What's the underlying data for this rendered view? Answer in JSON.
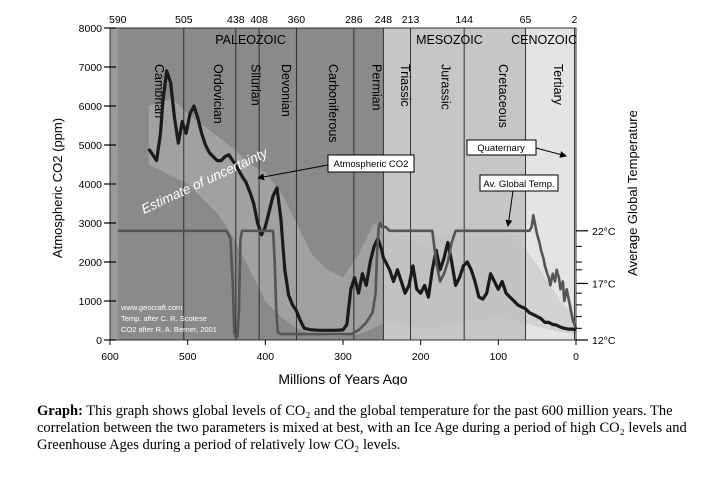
{
  "chart_data": {
    "type": "line",
    "title": "",
    "xlabel": "Millions of Years Ago",
    "ylabel": "Atmospheric CO2 (ppm)",
    "y2label": "Average Global Temperature",
    "xlim": [
      600,
      0
    ],
    "ylim": [
      0,
      8000
    ],
    "x_ticks": [
      "600",
      "500",
      "400",
      "300",
      "200",
      "100",
      "0"
    ],
    "x_tick_values": [
      600,
      500,
      400,
      300,
      200,
      100,
      0
    ],
    "y_ticks": [
      "0",
      "1000",
      "2000",
      "3000",
      "4000",
      "5000",
      "6000",
      "7000",
      "8000"
    ],
    "y_tick_values": [
      0,
      1000,
      2000,
      3000,
      4000,
      5000,
      6000,
      7000,
      8000
    ],
    "temp_ticks": [
      {
        "label": "22°C",
        "y": 2800
      },
      {
        "label": "17°C",
        "y": 1450
      },
      {
        "label": "12°C",
        "y": 0
      }
    ],
    "top_ticks": [
      "590",
      "505",
      "438",
      "408",
      "360",
      "286",
      "248",
      "213",
      "144",
      "65",
      "2"
    ],
    "top_tick_values": [
      590,
      505,
      438,
      408,
      360,
      286,
      248,
      213,
      144,
      65,
      2
    ],
    "eras": [
      {
        "label": "PALEOZOIC",
        "start": 590,
        "end": 248,
        "color": "#8a8a8a"
      },
      {
        "label": "MESOZOIC",
        "start": 248,
        "end": 65,
        "color": "#c6c6c6"
      },
      {
        "label": "CENOZOIC",
        "start": 65,
        "end": 0,
        "color": "#e4e4e4"
      }
    ],
    "periods": [
      {
        "label": "Cambrian",
        "start": 590,
        "end": 505
      },
      {
        "label": "Ordovician",
        "start": 505,
        "end": 438
      },
      {
        "label": "Silurian",
        "start": 438,
        "end": 408
      },
      {
        "label": "Devonian",
        "start": 408,
        "end": 360
      },
      {
        "label": "Carboniferous",
        "start": 360,
        "end": 286
      },
      {
        "label": "Permian",
        "start": 286,
        "end": 248
      },
      {
        "label": "Triassic",
        "start": 248,
        "end": 213
      },
      {
        "label": "Jurassic",
        "start": 213,
        "end": 144
      },
      {
        "label": "Cretaceous",
        "start": 144,
        "end": 65
      },
      {
        "label": "Tertiary",
        "start": 65,
        "end": 2
      }
    ],
    "series": [
      {
        "name": "Atmospheric CO2",
        "color": "#1a1a1a",
        "x": [
          550,
          540,
          535,
          532,
          527,
          522,
          517,
          512,
          507,
          502,
          497,
          492,
          487,
          482,
          477,
          472,
          467,
          462,
          457,
          452,
          447,
          442,
          437,
          430,
          425,
          420,
          415,
          410,
          405,
          400,
          395,
          390,
          385,
          380,
          375,
          370,
          365,
          360,
          355,
          350,
          340,
          330,
          320,
          310,
          300,
          295,
          290,
          285,
          280,
          275,
          270,
          265,
          260,
          255,
          250,
          248,
          245,
          240,
          235,
          230,
          225,
          220,
          215,
          210,
          205,
          200,
          195,
          190,
          185,
          180,
          175,
          170,
          165,
          160,
          155,
          150,
          145,
          140,
          135,
          130,
          125,
          120,
          115,
          110,
          105,
          100,
          95,
          90,
          85,
          80,
          75,
          70,
          65,
          60,
          55,
          50,
          45,
          40,
          35,
          30,
          25,
          20,
          15,
          10,
          5,
          0
        ],
        "y": [
          4900,
          4600,
          5300,
          6100,
          6900,
          6600,
          5700,
          5050,
          5600,
          5300,
          5800,
          6000,
          5700,
          5300,
          5000,
          4800,
          4700,
          4600,
          4600,
          4700,
          4750,
          4600,
          4450,
          4200,
          4050,
          3800,
          3500,
          3000,
          2700,
          2900,
          3300,
          3700,
          3900,
          3100,
          1800,
          1150,
          900,
          750,
          500,
          300,
          260,
          250,
          250,
          250,
          260,
          400,
          1300,
          1600,
          1200,
          1700,
          1400,
          2000,
          2400,
          2600,
          2300,
          2100,
          2000,
          1800,
          1500,
          1800,
          1500,
          1200,
          1400,
          1900,
          1300,
          1200,
          1400,
          1100,
          1800,
          2300,
          1800,
          2100,
          2500,
          2000,
          1400,
          1600,
          1900,
          2000,
          1800,
          1500,
          1100,
          1050,
          1200,
          1700,
          1500,
          1300,
          1500,
          1200,
          1100,
          1000,
          900,
          850,
          800,
          700,
          650,
          600,
          550,
          450,
          450,
          400,
          380,
          330,
          300,
          280,
          280,
          270
        ]
      },
      {
        "name": "Av. Global Temp.",
        "color": "#555555",
        "x": [
          590,
          560,
          530,
          500,
          470,
          450,
          445,
          442,
          440,
          438,
          436,
          434,
          432,
          430,
          420,
          410,
          400,
          395,
          390,
          388,
          386,
          384,
          380,
          375,
          370,
          365,
          360,
          355,
          350,
          340,
          330,
          320,
          310,
          300,
          290,
          280,
          270,
          262,
          258,
          256,
          254,
          252,
          250,
          245,
          240,
          220,
          200,
          190,
          185,
          180,
          175,
          170,
          165,
          160,
          155,
          150,
          145,
          140,
          130,
          120,
          110,
          100,
          90,
          85,
          80,
          75,
          70,
          65,
          60,
          57,
          55,
          52,
          50,
          47,
          45,
          42,
          40,
          37,
          35,
          33,
          30,
          27,
          25,
          22,
          20,
          17,
          15,
          12,
          10,
          8,
          6,
          4,
          2,
          0
        ],
        "y": [
          2800,
          2800,
          2800,
          2800,
          2800,
          2800,
          2600,
          1500,
          200,
          80,
          80,
          700,
          2600,
          2800,
          2800,
          2800,
          2800,
          2800,
          2800,
          2000,
          800,
          200,
          150,
          150,
          150,
          150,
          150,
          150,
          150,
          150,
          150,
          150,
          150,
          150,
          150,
          250,
          450,
          700,
          1200,
          2300,
          2900,
          3000,
          2900,
          2900,
          2800,
          2800,
          2800,
          2800,
          2800,
          2000,
          1500,
          1700,
          2000,
          2500,
          2800,
          2800,
          2800,
          2800,
          2800,
          2800,
          2800,
          2800,
          2800,
          2800,
          2800,
          2800,
          2800,
          2800,
          2800,
          2900,
          3200,
          2900,
          2700,
          2500,
          2300,
          2100,
          1900,
          1700,
          1600,
          1400,
          1700,
          1500,
          1800,
          1600,
          1300,
          1500,
          1000,
          1300,
          1100,
          900,
          700,
          500,
          400,
          300
        ]
      }
    ],
    "uncertainty_band": {
      "x": [
        550,
        520,
        500,
        480,
        460,
        440,
        420,
        400,
        380,
        360,
        340,
        320,
        300,
        280,
        260,
        240,
        220,
        200,
        180,
        160,
        140,
        120,
        100,
        80,
        60,
        40,
        20,
        0
      ],
      "upper": [
        6000,
        6200,
        5800,
        5500,
        5200,
        4900,
        4500,
        4300,
        3800,
        3000,
        2200,
        1800,
        1600,
        2200,
        3000,
        2800,
        2600,
        2500,
        2600,
        2700,
        2800,
        2800,
        2800,
        2600,
        2200,
        1600,
        1000,
        600
      ],
      "lower": [
        4500,
        4200,
        4000,
        3600,
        3200,
        2600,
        1800,
        1000,
        600,
        300,
        150,
        100,
        100,
        150,
        300,
        500,
        400,
        300,
        300,
        400,
        500,
        500,
        600,
        500,
        400,
        300,
        200,
        150
      ]
    },
    "annotations": [
      {
        "text": "Atmospheric CO2",
        "boxed": true
      },
      {
        "text": "Quaternary",
        "boxed": true
      },
      {
        "text": "Av. Global Temp.",
        "boxed": true
      },
      {
        "text": "Estimate of uncertainty",
        "boxed": false
      }
    ],
    "credits": [
      "www.geocraft.com",
      "Temp. after C. R. Scotese",
      "CO2 after R. A. Berner, 2001"
    ],
    "grid": false
  },
  "caption": {
    "lead": "Graph:",
    "text": " This graph shows global levels of CO₂ and the global temperature for the past 600 million years. The correlation between the two parameters is mixed at best, with an Ice Age during a period of high CO₂ levels and Greenhouse Ages during a period of relatively low CO₂ levels."
  }
}
